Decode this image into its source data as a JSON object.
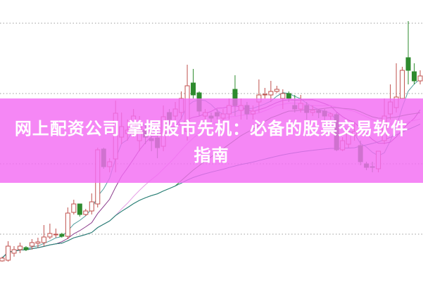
{
  "title": "网上配资公司 掌握股市先机：必备的股票交易软件指南",
  "colors": {
    "up": "#c0504d",
    "down": "#2e8b2e",
    "grid": "#b0b0b0",
    "banner": "#f36cf3",
    "title_text": "#ffffff"
  },
  "chart_data": {
    "type": "candlestick",
    "title": "",
    "xlabel": "",
    "ylabel": "",
    "ylim": [
      0,
      38
    ],
    "grid": true,
    "gridlines": [
      4.7,
      14.7,
      24.7,
      34.7
    ],
    "ohlc": [
      [
        0.9,
        1.5,
        0.8,
        1.3
      ],
      [
        1.0,
        3.7,
        0.8,
        3.0
      ],
      [
        2.0,
        3.0,
        1.5,
        2.5
      ],
      [
        2.5,
        3.5,
        2.0,
        3.0
      ],
      [
        2.8,
        3.0,
        2.3,
        2.5
      ],
      [
        3.0,
        4.0,
        2.5,
        3.5
      ],
      [
        3.4,
        4.2,
        2.8,
        3.6
      ],
      [
        3.5,
        6.0,
        3.0,
        4.3
      ],
      [
        4.3,
        6.2,
        4.0,
        4.8
      ],
      [
        4.6,
        5.5,
        4.2,
        4.7
      ],
      [
        4.7,
        4.9,
        4.2,
        4.4
      ],
      [
        4.4,
        8.5,
        4.0,
        7.7
      ],
      [
        7.8,
        9.6,
        7.5,
        9.0
      ],
      [
        9.0,
        9.0,
        7.2,
        7.5
      ],
      [
        7.5,
        8.3,
        7.3,
        8.0
      ],
      [
        8.0,
        10.5,
        7.5,
        9.3
      ],
      [
        9.0,
        17.0,
        8.5,
        16.7
      ],
      [
        16.8,
        17.0,
        14.0,
        14.3
      ],
      [
        14.3,
        15.5,
        13.5,
        15.0
      ],
      [
        15.4,
        23.7,
        13.5,
        21.9
      ],
      [
        18.5,
        22.0,
        17.5,
        20.0
      ],
      [
        19.0,
        21.0,
        18.0,
        19.5
      ],
      [
        19.7,
        22.5,
        18.5,
        21.5
      ],
      [
        18.0,
        21.5,
        16.5,
        20.5
      ],
      [
        19.5,
        20.5,
        17.5,
        18.5
      ],
      [
        18.3,
        19.5,
        16.5,
        18.0
      ],
      [
        18.4,
        19.0,
        15.5,
        17.0
      ],
      [
        17.2,
        23.0,
        16.5,
        21.4
      ],
      [
        22.0,
        22.5,
        20.0,
        21.0
      ],
      [
        21.5,
        23.5,
        20.5,
        22.5
      ],
      [
        22.0,
        25.0,
        21.0,
        24.0
      ],
      [
        19.3,
        28.8,
        18.0,
        25.8
      ],
      [
        26.2,
        28.2,
        24.0,
        24.5
      ],
      [
        24.8,
        25.0,
        21.5,
        22.2
      ],
      [
        21.5,
        22.5,
        20.5,
        22.0
      ],
      [
        21.5,
        22.0,
        20.5,
        21.2
      ],
      [
        22.0,
        22.5,
        21.0,
        21.5
      ],
      [
        21.2,
        22.5,
        20.5,
        21.8
      ],
      [
        21.8,
        24.0,
        21.0,
        23.0
      ],
      [
        25.3,
        27.3,
        21.5,
        23.0
      ],
      [
        22.3,
        24.0,
        21.0,
        23.0
      ],
      [
        23.0,
        23.5,
        21.0,
        21.8
      ],
      [
        21.8,
        23.0,
        21.0,
        22.2
      ],
      [
        23.5,
        26.7,
        22.0,
        24.5
      ],
      [
        24.5,
        25.5,
        24.0,
        24.6
      ],
      [
        24.5,
        26.5,
        23.5,
        25.0
      ],
      [
        25.0,
        25.8,
        24.8,
        25.3
      ],
      [
        24.0,
        25.3,
        22.5,
        24.7
      ],
      [
        24.7,
        25.0,
        23.5,
        24.0
      ],
      [
        23.0,
        24.5,
        22.0,
        22.5
      ],
      [
        22.5,
        24.5,
        22.0,
        23.3
      ],
      [
        23.0,
        23.5,
        21.0,
        22.0
      ],
      [
        22.0,
        23.0,
        21.5,
        22.3
      ],
      [
        22.3,
        22.5,
        21.2,
        22.0
      ],
      [
        22.2,
        22.5,
        20.8,
        21.5
      ],
      [
        21.5,
        22.0,
        21.0,
        21.8
      ],
      [
        21.7,
        22.0,
        16.5,
        16.7
      ],
      [
        16.7,
        18.5,
        16.5,
        18.0
      ],
      [
        17.5,
        20.0,
        17.0,
        19.0
      ],
      [
        18.8,
        20.5,
        18.0,
        19.3
      ],
      [
        17.3,
        18.0,
        14.5,
        15.0
      ],
      [
        14.7,
        15.0,
        13.8,
        14.2
      ],
      [
        14.3,
        15.0,
        13.5,
        14.2
      ],
      [
        14.0,
        16.5,
        13.5,
        16.5
      ],
      [
        18.0,
        24.0,
        17.5,
        21.5
      ],
      [
        21.8,
        26.0,
        21.0,
        23.5
      ],
      [
        22.7,
        29.0,
        22.0,
        24.2
      ],
      [
        24.0,
        28.5,
        24.0,
        28.0
      ],
      [
        29.8,
        35.0,
        26.0,
        28.0
      ],
      [
        27.8,
        29.0,
        26.0,
        26.5
      ],
      [
        26.5,
        28.0,
        26.0,
        27.2
      ]
    ],
    "moving_averages": [
      {
        "period": 5,
        "color": "#4f9d9d"
      },
      {
        "period": 10,
        "color": "#8a3a8a"
      },
      {
        "period": 20,
        "color": "#e6a0e6"
      },
      {
        "period": 30,
        "color": "#2e7d32"
      },
      {
        "period": 60,
        "color": "#2a8080"
      }
    ]
  }
}
